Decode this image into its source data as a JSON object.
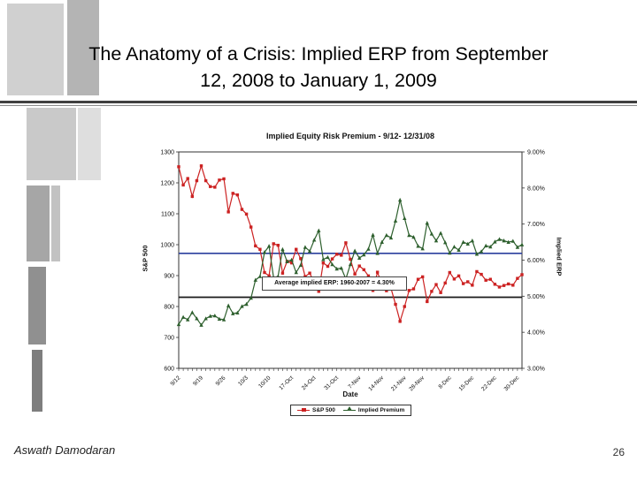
{
  "slide": {
    "title_line1": "The Anatomy of a Crisis: Implied ERP from September",
    "title_line2": "12, 2008 to January 1, 2009",
    "footer_left": "Aswath Damodaran",
    "page_number": "26"
  },
  "chart_data": {
    "type": "line",
    "title": "Implied Equity Risk Premium - 9/12- 12/31/08",
    "xlabel": "Date",
    "ylabel_left": "S&P 500",
    "ylabel_right": "Implied ERP",
    "left_axis": {
      "min": 600,
      "max": 1300,
      "ticks": [
        1300,
        1200,
        1100,
        1000,
        900,
        800,
        700,
        600
      ]
    },
    "right_axis": {
      "min": 3,
      "max": 9,
      "ticks": [
        {
          "v": 9,
          "label": "9.00%"
        },
        {
          "v": 8,
          "label": "8.00%"
        },
        {
          "v": 7,
          "label": "7.00%"
        },
        {
          "v": 6,
          "label": "6.00%"
        },
        {
          "v": 5,
          "label": "5.00%"
        },
        {
          "v": 4,
          "label": "4.00%"
        },
        {
          "v": 3,
          "label": "3.00%"
        }
      ]
    },
    "x_ticks": [
      {
        "i": 0,
        "label": "9/12"
      },
      {
        "i": 5,
        "label": "9/19"
      },
      {
        "i": 10,
        "label": "9/26"
      },
      {
        "i": 15,
        "label": "10/3"
      },
      {
        "i": 20,
        "label": "10/10"
      },
      {
        "i": 25,
        "label": "17-Oct"
      },
      {
        "i": 30,
        "label": "24-Oct"
      },
      {
        "i": 35,
        "label": "31-Oct"
      },
      {
        "i": 40,
        "label": "7-Nov"
      },
      {
        "i": 45,
        "label": "14-Nov"
      },
      {
        "i": 50,
        "label": "21-Nov"
      },
      {
        "i": 54,
        "label": "28-Nov"
      },
      {
        "i": 60,
        "label": "8-Dec"
      },
      {
        "i": 65,
        "label": "15-Dec"
      },
      {
        "i": 70,
        "label": "22-Dec"
      },
      {
        "i": 75,
        "label": "30-Dec"
      }
    ],
    "dates": [
      "9/12",
      "9/15",
      "9/16",
      "9/17",
      "9/18",
      "9/19",
      "9/22",
      "9/23",
      "9/24",
      "9/25",
      "9/26",
      "9/29",
      "9/30",
      "10/1",
      "10/2",
      "10/3",
      "10/6",
      "10/7",
      "10/8",
      "10/9",
      "10/10",
      "10/13",
      "10/14",
      "10/15",
      "10/16",
      "10/17",
      "10/20",
      "10/21",
      "10/22",
      "10/23",
      "10/24",
      "10/27",
      "10/28",
      "10/29",
      "10/30",
      "10/31",
      "11/3",
      "11/4",
      "11/5",
      "11/6",
      "11/7",
      "11/10",
      "11/11",
      "11/12",
      "11/13",
      "11/14",
      "11/17",
      "11/18",
      "11/19",
      "11/20",
      "11/21",
      "11/24",
      "11/25",
      "11/26",
      "11/28",
      "12/1",
      "12/2",
      "12/3",
      "12/4",
      "12/5",
      "12/8",
      "12/9",
      "12/10",
      "12/11",
      "12/12",
      "12/15",
      "12/16",
      "12/17",
      "12/18",
      "12/19",
      "12/22",
      "12/23",
      "12/24",
      "12/26",
      "12/29",
      "12/30",
      "12/31"
    ],
    "series": [
      {
        "name": "S&P 500",
        "axis": "left",
        "color": "#cc2222",
        "marker": "square",
        "values": [
          1252,
          1193,
          1214,
          1156,
          1207,
          1255,
          1207,
          1188,
          1186,
          1209,
          1213,
          1106,
          1166,
          1161,
          1114,
          1099,
          1057,
          996,
          985,
          910,
          899,
          1003,
          998,
          908,
          946,
          941,
          985,
          955,
          897,
          908,
          877,
          849,
          941,
          930,
          954,
          969,
          966,
          1006,
          953,
          905,
          931,
          919,
          899,
          852,
          911,
          873,
          851,
          859,
          807,
          752,
          800,
          852,
          857,
          888,
          896,
          816,
          849,
          871,
          845,
          876,
          910,
          889,
          899,
          874,
          880,
          869,
          913,
          904,
          885,
          888,
          872,
          863,
          868,
          873,
          869,
          891,
          903
        ]
      },
      {
        "name": "Implied Premium",
        "axis": "right",
        "color": "#2d5f2d",
        "marker": "triangle",
        "values": [
          4.22,
          4.42,
          4.35,
          4.55,
          4.38,
          4.2,
          4.38,
          4.45,
          4.46,
          4.37,
          4.35,
          4.74,
          4.52,
          4.54,
          4.72,
          4.78,
          4.95,
          5.45,
          5.55,
          6.22,
          6.39,
          5.52,
          5.55,
          6.3,
          5.96,
          6.01,
          5.66,
          5.86,
          6.36,
          6.25,
          6.56,
          6.82,
          6.02,
          6.08,
          5.88,
          5.76,
          5.78,
          5.48,
          5.88,
          6.26,
          6.06,
          6.15,
          6.31,
          6.7,
          6.19,
          6.5,
          6.69,
          6.62,
          7.09,
          7.67,
          7.16,
          6.69,
          6.64,
          6.39,
          6.32,
          7.03,
          6.73,
          6.54,
          6.75,
          6.49,
          6.2,
          6.37,
          6.28,
          6.5,
          6.45,
          6.54,
          6.17,
          6.24,
          6.4,
          6.37,
          6.51,
          6.58,
          6.54,
          6.5,
          6.53,
          6.36,
          6.43
        ]
      }
    ],
    "reference_lines": [
      {
        "name": "sp500-level-line",
        "axis": "left",
        "value": 972,
        "color": "#2b3f9e"
      },
      {
        "name": "average-erp-line",
        "axis": "left",
        "value": 830,
        "color": "#1a1a1a"
      }
    ],
    "annotation": "Average implied ERP: 1960-2007 = 4.30%",
    "legend_position": "bottom"
  }
}
